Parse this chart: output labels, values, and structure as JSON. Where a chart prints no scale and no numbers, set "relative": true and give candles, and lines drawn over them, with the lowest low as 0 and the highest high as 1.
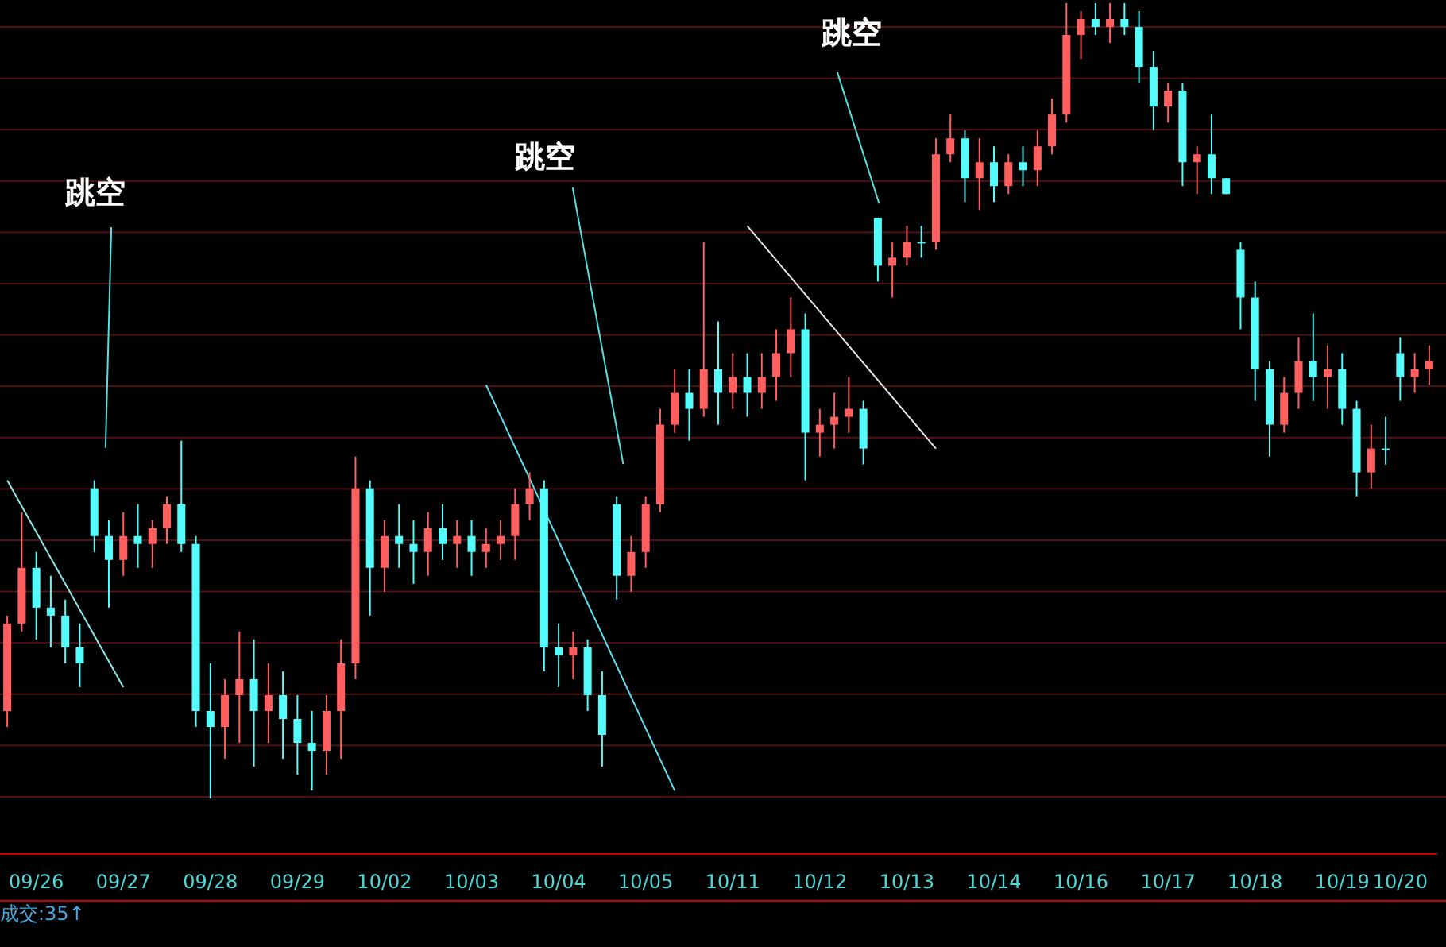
{
  "chart_data": {
    "type": "candlestick",
    "relative": true,
    "categories": [
      null,
      null,
      "09/26",
      null,
      null,
      null,
      null,
      null,
      "09/27",
      null,
      null,
      null,
      null,
      null,
      "09/28",
      null,
      null,
      null,
      null,
      null,
      "09/29",
      null,
      null,
      null,
      null,
      null,
      "10/02",
      null,
      null,
      null,
      null,
      null,
      "10/03",
      null,
      null,
      null,
      null,
      null,
      "10/04",
      null,
      null,
      null,
      null,
      null,
      "10/05",
      null,
      null,
      null,
      null,
      null,
      "10/11",
      null,
      null,
      null,
      null,
      null,
      "10/12",
      null,
      null,
      null,
      null,
      null,
      "10/13",
      null,
      null,
      null,
      null,
      null,
      "10/14",
      null,
      null,
      null,
      null,
      null,
      "10/16",
      null,
      null,
      null,
      null,
      null,
      "10/17",
      null,
      null,
      null,
      null,
      null,
      "10/18",
      null,
      null,
      null,
      null,
      null,
      "10/19",
      null,
      null,
      null,
      "10/20",
      null,
      null
    ],
    "ohlc": [
      [
        0.11,
        0.23,
        0.09,
        0.22
      ],
      [
        0.22,
        0.36,
        0.21,
        0.29
      ],
      [
        0.29,
        0.31,
        0.2,
        0.24
      ],
      [
        0.24,
        0.28,
        0.19,
        0.23
      ],
      [
        0.23,
        0.25,
        0.17,
        0.19
      ],
      [
        0.19,
        0.22,
        0.14,
        0.17
      ],
      [
        0.39,
        0.4,
        0.31,
        0.33
      ],
      [
        0.33,
        0.35,
        0.24,
        0.3
      ],
      [
        0.3,
        0.36,
        0.28,
        0.33
      ],
      [
        0.33,
        0.37,
        0.29,
        0.32
      ],
      [
        0.32,
        0.35,
        0.29,
        0.34
      ],
      [
        0.34,
        0.38,
        0.32,
        0.37
      ],
      [
        0.37,
        0.45,
        0.31,
        0.32
      ],
      [
        0.32,
        0.33,
        0.09,
        0.11
      ],
      [
        0.11,
        0.17,
        0.0,
        0.09
      ],
      [
        0.09,
        0.15,
        0.05,
        0.13
      ],
      [
        0.13,
        0.21,
        0.07,
        0.15
      ],
      [
        0.15,
        0.2,
        0.04,
        0.11
      ],
      [
        0.11,
        0.17,
        0.07,
        0.13
      ],
      [
        0.13,
        0.16,
        0.05,
        0.1
      ],
      [
        0.1,
        0.13,
        0.03,
        0.07
      ],
      [
        0.07,
        0.11,
        0.01,
        0.06
      ],
      [
        0.06,
        0.13,
        0.03,
        0.11
      ],
      [
        0.11,
        0.2,
        0.05,
        0.17
      ],
      [
        0.17,
        0.43,
        0.15,
        0.39
      ],
      [
        0.39,
        0.4,
        0.23,
        0.29
      ],
      [
        0.29,
        0.35,
        0.26,
        0.33
      ],
      [
        0.33,
        0.37,
        0.29,
        0.32
      ],
      [
        0.32,
        0.35,
        0.27,
        0.31
      ],
      [
        0.31,
        0.36,
        0.28,
        0.34
      ],
      [
        0.34,
        0.37,
        0.3,
        0.32
      ],
      [
        0.32,
        0.35,
        0.29,
        0.33
      ],
      [
        0.33,
        0.35,
        0.28,
        0.31
      ],
      [
        0.31,
        0.34,
        0.29,
        0.32
      ],
      [
        0.32,
        0.35,
        0.3,
        0.33
      ],
      [
        0.33,
        0.39,
        0.3,
        0.37
      ],
      [
        0.37,
        0.41,
        0.35,
        0.39
      ],
      [
        0.39,
        0.4,
        0.16,
        0.19
      ],
      [
        0.19,
        0.22,
        0.14,
        0.18
      ],
      [
        0.18,
        0.21,
        0.15,
        0.19
      ],
      [
        0.19,
        0.2,
        0.11,
        0.13
      ],
      [
        0.13,
        0.16,
        0.04,
        0.08
      ],
      [
        0.37,
        0.38,
        0.25,
        0.28
      ],
      [
        0.28,
        0.33,
        0.26,
        0.31
      ],
      [
        0.31,
        0.38,
        0.29,
        0.37
      ],
      [
        0.37,
        0.49,
        0.36,
        0.47
      ],
      [
        0.47,
        0.54,
        0.46,
        0.51
      ],
      [
        0.51,
        0.54,
        0.45,
        0.49
      ],
      [
        0.49,
        0.7,
        0.48,
        0.54
      ],
      [
        0.54,
        0.6,
        0.47,
        0.51
      ],
      [
        0.51,
        0.56,
        0.49,
        0.53
      ],
      [
        0.53,
        0.56,
        0.48,
        0.51
      ],
      [
        0.51,
        0.56,
        0.49,
        0.53
      ],
      [
        0.53,
        0.59,
        0.5,
        0.56
      ],
      [
        0.56,
        0.63,
        0.53,
        0.59
      ],
      [
        0.59,
        0.61,
        0.4,
        0.46
      ],
      [
        0.46,
        0.49,
        0.43,
        0.47
      ],
      [
        0.47,
        0.51,
        0.44,
        0.48
      ],
      [
        0.48,
        0.53,
        0.46,
        0.49
      ],
      [
        0.49,
        0.5,
        0.42,
        0.44
      ],
      [
        0.73,
        0.73,
        0.65,
        0.67
      ],
      [
        0.67,
        0.7,
        0.63,
        0.68
      ],
      [
        0.68,
        0.72,
        0.67,
        0.7
      ],
      [
        0.7,
        0.72,
        0.68,
        0.7
      ],
      [
        0.7,
        0.83,
        0.69,
        0.81
      ],
      [
        0.81,
        0.86,
        0.8,
        0.83
      ],
      [
        0.83,
        0.84,
        0.75,
        0.78
      ],
      [
        0.78,
        0.83,
        0.74,
        0.8
      ],
      [
        0.8,
        0.82,
        0.75,
        0.77
      ],
      [
        0.77,
        0.81,
        0.76,
        0.8
      ],
      [
        0.8,
        0.82,
        0.77,
        0.79
      ],
      [
        0.79,
        0.84,
        0.77,
        0.82
      ],
      [
        0.82,
        0.88,
        0.81,
        0.86
      ],
      [
        0.86,
        1.0,
        0.85,
        0.96
      ],
      [
        0.96,
        0.99,
        0.93,
        0.98
      ],
      [
        0.98,
        1.0,
        0.96,
        0.97
      ],
      [
        0.97,
        1.0,
        0.95,
        0.98
      ],
      [
        0.98,
        1.0,
        0.96,
        0.97
      ],
      [
        0.97,
        0.99,
        0.9,
        0.92
      ],
      [
        0.92,
        0.94,
        0.84,
        0.87
      ],
      [
        0.87,
        0.9,
        0.85,
        0.89
      ],
      [
        0.89,
        0.9,
        0.77,
        0.8
      ],
      [
        0.8,
        0.82,
        0.76,
        0.81
      ],
      [
        0.81,
        0.86,
        0.76,
        0.78
      ],
      [
        0.78,
        0.78,
        0.76,
        0.76
      ],
      [
        0.69,
        0.7,
        0.59,
        0.63
      ],
      [
        0.63,
        0.65,
        0.5,
        0.54
      ],
      [
        0.54,
        0.55,
        0.43,
        0.47
      ],
      [
        0.47,
        0.53,
        0.46,
        0.51
      ],
      [
        0.51,
        0.58,
        0.49,
        0.55
      ],
      [
        0.55,
        0.61,
        0.5,
        0.53
      ],
      [
        0.53,
        0.57,
        0.49,
        0.54
      ],
      [
        0.54,
        0.56,
        0.47,
        0.49
      ],
      [
        0.49,
        0.5,
        0.38,
        0.41
      ],
      [
        0.41,
        0.47,
        0.39,
        0.44
      ],
      [
        0.44,
        0.48,
        0.42,
        0.44
      ],
      [
        0.56,
        0.58,
        0.5,
        0.53
      ],
      [
        0.53,
        0.56,
        0.51,
        0.54
      ],
      [
        0.54,
        0.57,
        0.52,
        0.55
      ]
    ],
    "colors": [
      "#ff5f5f",
      "#ff5f5f",
      "#54fcfc",
      "#54fcfc",
      "#54fcfc",
      "#54fcfc",
      "#54fcfc",
      "#54fcfc",
      "#ff5f5f",
      "#54fcfc",
      "#ff5f5f",
      "#ff5f5f",
      "#54fcfc",
      "#54fcfc",
      "#54fcfc",
      "#ff5f5f",
      "#ff5f5f",
      "#54fcfc",
      "#ff5f5f",
      "#54fcfc",
      "#54fcfc",
      "#54fcfc",
      "#ff5f5f",
      "#ff5f5f",
      "#ff5f5f",
      "#54fcfc",
      "#ff5f5f",
      "#54fcfc",
      "#54fcfc",
      "#ff5f5f",
      "#54fcfc",
      "#ff5f5f",
      "#54fcfc",
      "#ff5f5f",
      "#ff5f5f",
      "#ff5f5f",
      "#ff5f5f",
      "#54fcfc",
      "#54fcfc",
      "#ff5f5f",
      "#54fcfc",
      "#54fcfc",
      "#54fcfc",
      "#ff5f5f",
      "#ff5f5f",
      "#ff5f5f",
      "#ff5f5f",
      "#54fcfc",
      "#ff5f5f",
      "#54fcfc",
      "#ff5f5f",
      "#54fcfc",
      "#ff5f5f",
      "#ff5f5f",
      "#ff5f5f",
      "#54fcfc",
      "#ff5f5f",
      "#ff5f5f",
      "#ff5f5f",
      "#54fcfc",
      "#54fcfc",
      "#ff5f5f",
      "#ff5f5f",
      "#54fcfc",
      "#ff5f5f",
      "#ff5f5f",
      "#54fcfc",
      "#ff5f5f",
      "#54fcfc",
      "#ff5f5f",
      "#54fcfc",
      "#ff5f5f",
      "#ff5f5f",
      "#ff5f5f",
      "#ff5f5f",
      "#54fcfc",
      "#ff5f5f",
      "#54fcfc",
      "#54fcfc",
      "#54fcfc",
      "#ff5f5f",
      "#54fcfc",
      "#ff5f5f",
      "#54fcfc",
      "#54fcfc",
      "#54fcfc",
      "#54fcfc",
      "#54fcfc",
      "#ff5f5f",
      "#ff5f5f",
      "#54fcfc",
      "#ff5f5f",
      "#54fcfc",
      "#54fcfc",
      "#ff5f5f",
      "#54fcfc",
      "#54fcfc",
      "#ff5f5f",
      "#ff5f5f"
    ],
    "series": [
      {
        "type": "line",
        "values": [
          0.4,
          null,
          null,
          null,
          null,
          null,
          null,
          null,
          0.14,
          null,
          null,
          null,
          null,
          null,
          null,
          null,
          null,
          null,
          null,
          null,
          null,
          null,
          null,
          null,
          null,
          null,
          null,
          null,
          null,
          null,
          null,
          null,
          null,
          null,
          null,
          null,
          null,
          null,
          null,
          null,
          null,
          null,
          null,
          null,
          null,
          null,
          null,
          null,
          null,
          null,
          null,
          null,
          null,
          null,
          null,
          null,
          null,
          null,
          null,
          null,
          null,
          null,
          null,
          null,
          null,
          null,
          null,
          null,
          null,
          null,
          null,
          null,
          null,
          null,
          null,
          null,
          null,
          null,
          null,
          null,
          null,
          null,
          null,
          null,
          null,
          null,
          null,
          null,
          null,
          null,
          null,
          null,
          null,
          null,
          null,
          null,
          null,
          null,
          null
        ],
        "color": "#8ee8e8"
      },
      {
        "type": "line",
        "values": [
          null,
          null,
          null,
          null,
          null,
          null,
          null,
          null,
          null,
          null,
          null,
          null,
          null,
          null,
          null,
          null,
          null,
          null,
          null,
          null,
          null,
          null,
          null,
          null,
          null,
          null,
          null,
          null,
          null,
          null,
          null,
          null,
          null,
          0.52,
          null,
          null,
          null,
          null,
          null,
          null,
          null,
          null,
          null,
          null,
          null,
          null,
          0.01,
          null,
          null,
          null,
          null,
          null,
          null,
          null,
          null,
          null,
          null,
          null,
          null,
          null,
          null,
          null,
          null,
          null,
          null,
          null,
          null,
          null,
          null,
          null,
          null,
          null,
          null,
          null,
          null,
          null,
          null,
          null,
          null,
          null,
          null,
          null,
          null,
          null,
          null,
          null,
          null,
          null,
          null,
          null,
          null,
          null,
          null,
          null,
          null,
          null,
          null,
          null,
          null
        ],
        "color": "#5fe0f0"
      },
      {
        "type": "line",
        "values": [
          null,
          null,
          null,
          null,
          null,
          null,
          null,
          null,
          null,
          null,
          null,
          null,
          null,
          null,
          null,
          null,
          null,
          null,
          null,
          null,
          null,
          null,
          null,
          null,
          null,
          null,
          null,
          null,
          null,
          null,
          null,
          null,
          null,
          null,
          null,
          null,
          null,
          null,
          null,
          null,
          null,
          null,
          null,
          null,
          null,
          null,
          null,
          null,
          null,
          null,
          null,
          0.72,
          null,
          null,
          null,
          null,
          null,
          null,
          null,
          null,
          null,
          null,
          null,
          null,
          0.44,
          null,
          null,
          null,
          null,
          null,
          null,
          null,
          null,
          null,
          null,
          null,
          null,
          null,
          null,
          null,
          null,
          null,
          null,
          null,
          null,
          null,
          null,
          null,
          null,
          null,
          null,
          null,
          null,
          null,
          null,
          null,
          null,
          null,
          null
        ],
        "color": "#e8e8e8"
      }
    ],
    "annotations": [
      "跳空",
      "跳空",
      "跳空",
      "成交:35↑"
    ]
  }
}
